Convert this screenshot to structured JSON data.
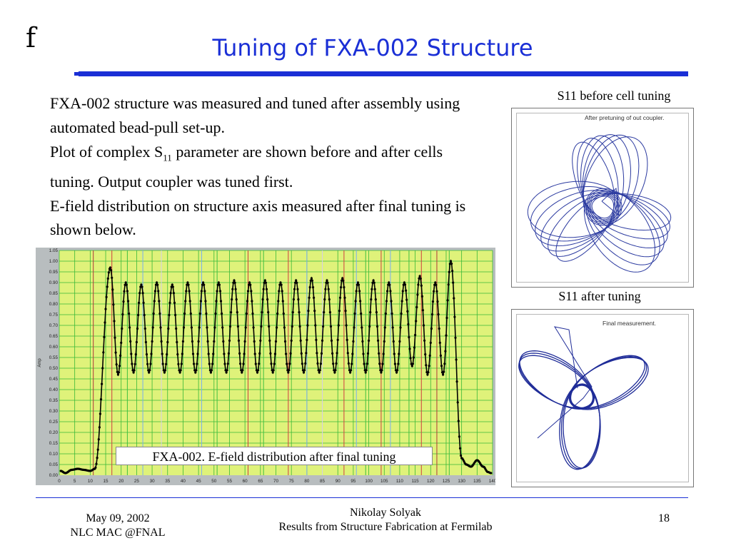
{
  "slide": {
    "logo": "f",
    "title": "Tuning of FXA-002 Structure",
    "accent_color": "#1a2fd6"
  },
  "body": {
    "p1": "FXA-002 structure was measured and tuned after assembly using automated bead-pull set-up.",
    "p2_pre": "Plot of complex S",
    "p2_sub": "11",
    "p2_post": " parameter are shown before and after cells tuning. Output coupler was tuned first.",
    "p3": "E-field distribution on structure axis measured after final tuning is shown below."
  },
  "s11_before": {
    "caption": "S11 before cell tuning",
    "note": "After pretuning of out coupler."
  },
  "s11_after": {
    "caption": "S11 after tuning",
    "note": "Final measurement."
  },
  "chart_data": {
    "type": "line",
    "ylabel": "Amp",
    "xlabel": "",
    "xlim": [
      0,
      140
    ],
    "ylim": [
      0,
      1.05
    ],
    "x_ticks": [
      0,
      5,
      10,
      15,
      20,
      25,
      30,
      35,
      40,
      45,
      50,
      55,
      60,
      65,
      70,
      75,
      80,
      85,
      90,
      95,
      100,
      105,
      110,
      115,
      120,
      125,
      130,
      135,
      140
    ],
    "y_ticks": [
      0,
      0.05,
      0.1,
      0.15,
      0.2,
      0.25,
      0.3,
      0.35,
      0.4,
      0.45,
      0.5,
      0.55,
      0.6,
      0.65,
      0.7,
      0.75,
      0.8,
      0.85,
      0.9,
      0.95,
      1.0,
      1.05
    ],
    "y_tick_labels": [
      "0.00",
      "0.05",
      "0.10",
      "0.15",
      "0.20",
      "0.25",
      "0.30",
      "0.35",
      "0.40",
      "0.45",
      "0.50",
      "0.55",
      "0.60",
      "0.65",
      "0.70",
      "0.75",
      "0.80",
      "0.85",
      "0.90",
      "0.95",
      "1.00",
      "1.05"
    ],
    "caption": "FXA-002. E-field distribution after final tuning",
    "grid": true,
    "plot_bg": "#dff27a",
    "grid_color": "#38b838",
    "line_color": "#000000",
    "marker_lines": [
      {
        "x": 11,
        "color": "#b03a3a"
      },
      {
        "x": 17,
        "color": "#d04040"
      },
      {
        "x": 22,
        "color": "#40c040"
      },
      {
        "x": 27,
        "color": "#7aaef0"
      },
      {
        "x": 33,
        "color": "#d8d0e8"
      },
      {
        "x": 46,
        "color": "#7aaef0"
      },
      {
        "x": 51,
        "color": "#40c040"
      },
      {
        "x": 61,
        "color": "#d04040"
      },
      {
        "x": 66,
        "color": "#40c040"
      },
      {
        "x": 74,
        "color": "#d04040"
      },
      {
        "x": 80,
        "color": "#7aaef0"
      },
      {
        "x": 85,
        "color": "#d8d0e8"
      },
      {
        "x": 92,
        "color": "#d04040"
      },
      {
        "x": 96,
        "color": "#7aaef0"
      },
      {
        "x": 99,
        "color": "#40c040"
      },
      {
        "x": 104,
        "color": "#d04040"
      },
      {
        "x": 107,
        "color": "#7aaef0"
      },
      {
        "x": 113,
        "color": "#40c040"
      },
      {
        "x": 117,
        "color": "#d04040"
      },
      {
        "x": 122,
        "color": "#b03a3a"
      },
      {
        "x": 126,
        "color": "#40c040"
      }
    ],
    "series": [
      {
        "peaks": [
          {
            "x": 16.5,
            "y": 0.97
          },
          {
            "x": 21.5,
            "y": 0.9
          },
          {
            "x": 26.5,
            "y": 0.89
          },
          {
            "x": 31.5,
            "y": 0.9
          },
          {
            "x": 36.5,
            "y": 0.89
          },
          {
            "x": 41.5,
            "y": 0.9
          },
          {
            "x": 46.5,
            "y": 0.9
          },
          {
            "x": 51.5,
            "y": 0.9
          },
          {
            "x": 56.5,
            "y": 0.91
          },
          {
            "x": 61.5,
            "y": 0.9
          },
          {
            "x": 66.5,
            "y": 0.91
          },
          {
            "x": 71.5,
            "y": 0.9
          },
          {
            "x": 76.5,
            "y": 0.91
          },
          {
            "x": 81.5,
            "y": 0.92
          },
          {
            "x": 86.5,
            "y": 0.91
          },
          {
            "x": 91.5,
            "y": 0.92
          },
          {
            "x": 96.5,
            "y": 0.9
          },
          {
            "x": 101.5,
            "y": 0.91
          },
          {
            "x": 106.5,
            "y": 0.9
          },
          {
            "x": 111.5,
            "y": 0.9
          },
          {
            "x": 116.5,
            "y": 0.93
          },
          {
            "x": 121.5,
            "y": 0.9
          },
          {
            "x": 126.5,
            "y": 1.0
          }
        ],
        "valleys": [
          {
            "x": 19,
            "y": 0.47
          },
          {
            "x": 24,
            "y": 0.48
          },
          {
            "x": 29,
            "y": 0.48
          },
          {
            "x": 34,
            "y": 0.48
          },
          {
            "x": 39,
            "y": 0.48
          },
          {
            "x": 44,
            "y": 0.48
          },
          {
            "x": 49,
            "y": 0.48
          },
          {
            "x": 54,
            "y": 0.48
          },
          {
            "x": 59,
            "y": 0.48
          },
          {
            "x": 64,
            "y": 0.48
          },
          {
            "x": 69,
            "y": 0.48
          },
          {
            "x": 74,
            "y": 0.48
          },
          {
            "x": 79,
            "y": 0.48
          },
          {
            "x": 84,
            "y": 0.48
          },
          {
            "x": 89,
            "y": 0.48
          },
          {
            "x": 94,
            "y": 0.48
          },
          {
            "x": 99,
            "y": 0.48
          },
          {
            "x": 104,
            "y": 0.48
          },
          {
            "x": 109,
            "y": 0.48
          },
          {
            "x": 114,
            "y": 0.51
          },
          {
            "x": 119,
            "y": 0.47
          },
          {
            "x": 124,
            "y": 0.47
          }
        ],
        "baseline_left": [
          {
            "x": 0.5,
            "y": 0.02
          },
          {
            "x": 2,
            "y": 0.01
          },
          {
            "x": 4,
            "y": 0.025
          },
          {
            "x": 6,
            "y": 0.03
          },
          {
            "x": 8,
            "y": 0.025
          },
          {
            "x": 10,
            "y": 0.02
          },
          {
            "x": 11.5,
            "y": 0.03
          }
        ],
        "baseline_right": [
          {
            "x": 130,
            "y": 0.08
          },
          {
            "x": 131.5,
            "y": 0.05
          },
          {
            "x": 133,
            "y": 0.04
          },
          {
            "x": 135,
            "y": 0.07
          },
          {
            "x": 137,
            "y": 0.04
          },
          {
            "x": 138.5,
            "y": 0.015
          },
          {
            "x": 139.5,
            "y": 0.01
          }
        ]
      }
    ]
  },
  "footer": {
    "date": "May 09, 2002",
    "venue": "NLC MAC @FNAL",
    "author": "Nikolay Solyak",
    "talk": "Results from Structure Fabrication at Fermilab",
    "page": "18"
  }
}
